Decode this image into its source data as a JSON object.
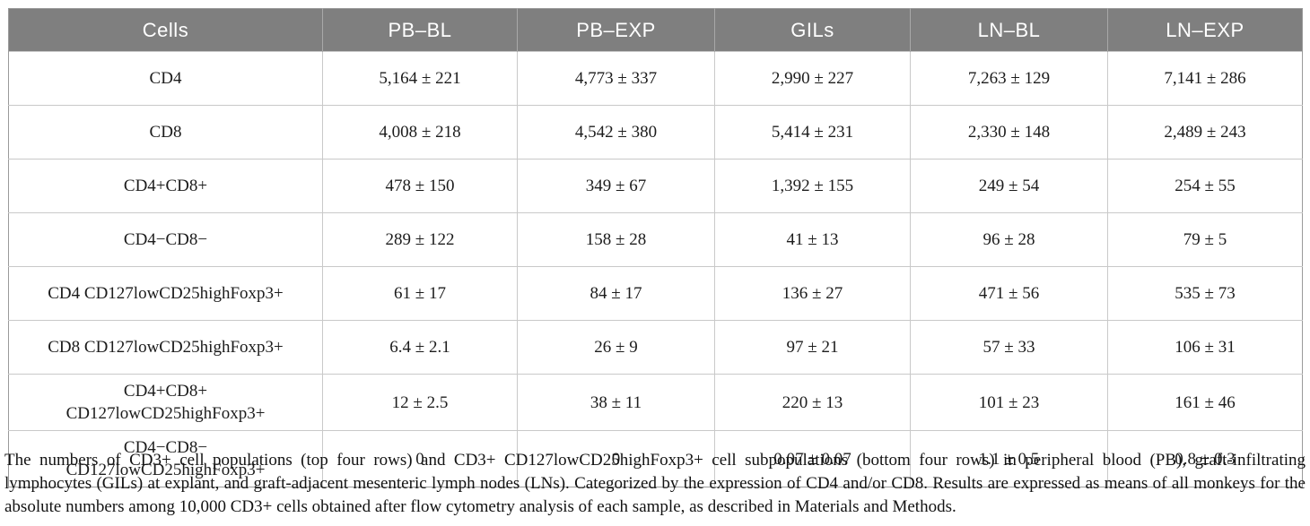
{
  "table": {
    "columns": [
      "Cells",
      "PB–BL",
      "PB–EXP",
      "GILs",
      "LN–BL",
      "LN–EXP"
    ],
    "rows": [
      {
        "label": "CD4",
        "values": [
          "5,164 ± 221",
          "4,773 ± 337",
          "2,990 ± 227",
          "7,263 ± 129",
          "7,141 ± 286"
        ]
      },
      {
        "label": "CD8",
        "values": [
          "4,008 ± 218",
          "4,542 ± 380",
          "5,414 ± 231",
          "2,330 ± 148",
          "2,489 ± 243"
        ]
      },
      {
        "label": "CD4+CD8+",
        "values": [
          "478 ± 150",
          "349 ± 67",
          "1,392 ± 155",
          "249 ± 54",
          "254 ± 55"
        ]
      },
      {
        "label": "CD4−CD8−",
        "values": [
          "289 ± 122",
          "158 ± 28",
          "41 ± 13",
          "96 ± 28",
          "79 ± 5"
        ]
      },
      {
        "label": "CD4 CD127lowCD25highFoxp3+",
        "values": [
          "61 ± 17",
          "84 ± 17",
          "136 ± 27",
          "471 ± 56",
          "535 ± 73"
        ]
      },
      {
        "label": "CD8 CD127lowCD25highFoxp3+",
        "values": [
          "6.4 ± 2.1",
          "26 ± 9",
          "97 ± 21",
          "57 ± 33",
          "106 ± 31"
        ]
      },
      {
        "label": "CD4+CD8+\nCD127lowCD25highFoxp3+",
        "values": [
          "12 ± 2.5",
          "38 ± 11",
          "220 ± 13",
          "101 ± 23",
          "161 ± 46"
        ]
      },
      {
        "label": "CD4−CD8−\nCD127lowCD25highFoxp3+",
        "values": [
          "0",
          "0",
          "0.07 ± 0.07",
          "1.1 ± 0.5",
          "0.8 ± 0.3"
        ]
      }
    ]
  },
  "footnote": "The numbers of CD3+ cell populations (top four rows) and CD3+ CD127lowCD25highFoxp3+ cell subpopulations (bottom four rows) in peripheral blood (PB), graft-infiltrating lymphocytes (GILs) at explant, and graft-adjacent mesenteric lymph nodes (LNs). Categorized by the expression of CD4 and/or CD8. Results are expressed as means of all monkeys for the absolute numbers among 10,000 CD3+ cells obtained after flow cytometry analysis of each sample, as described in Materials and Methods."
}
